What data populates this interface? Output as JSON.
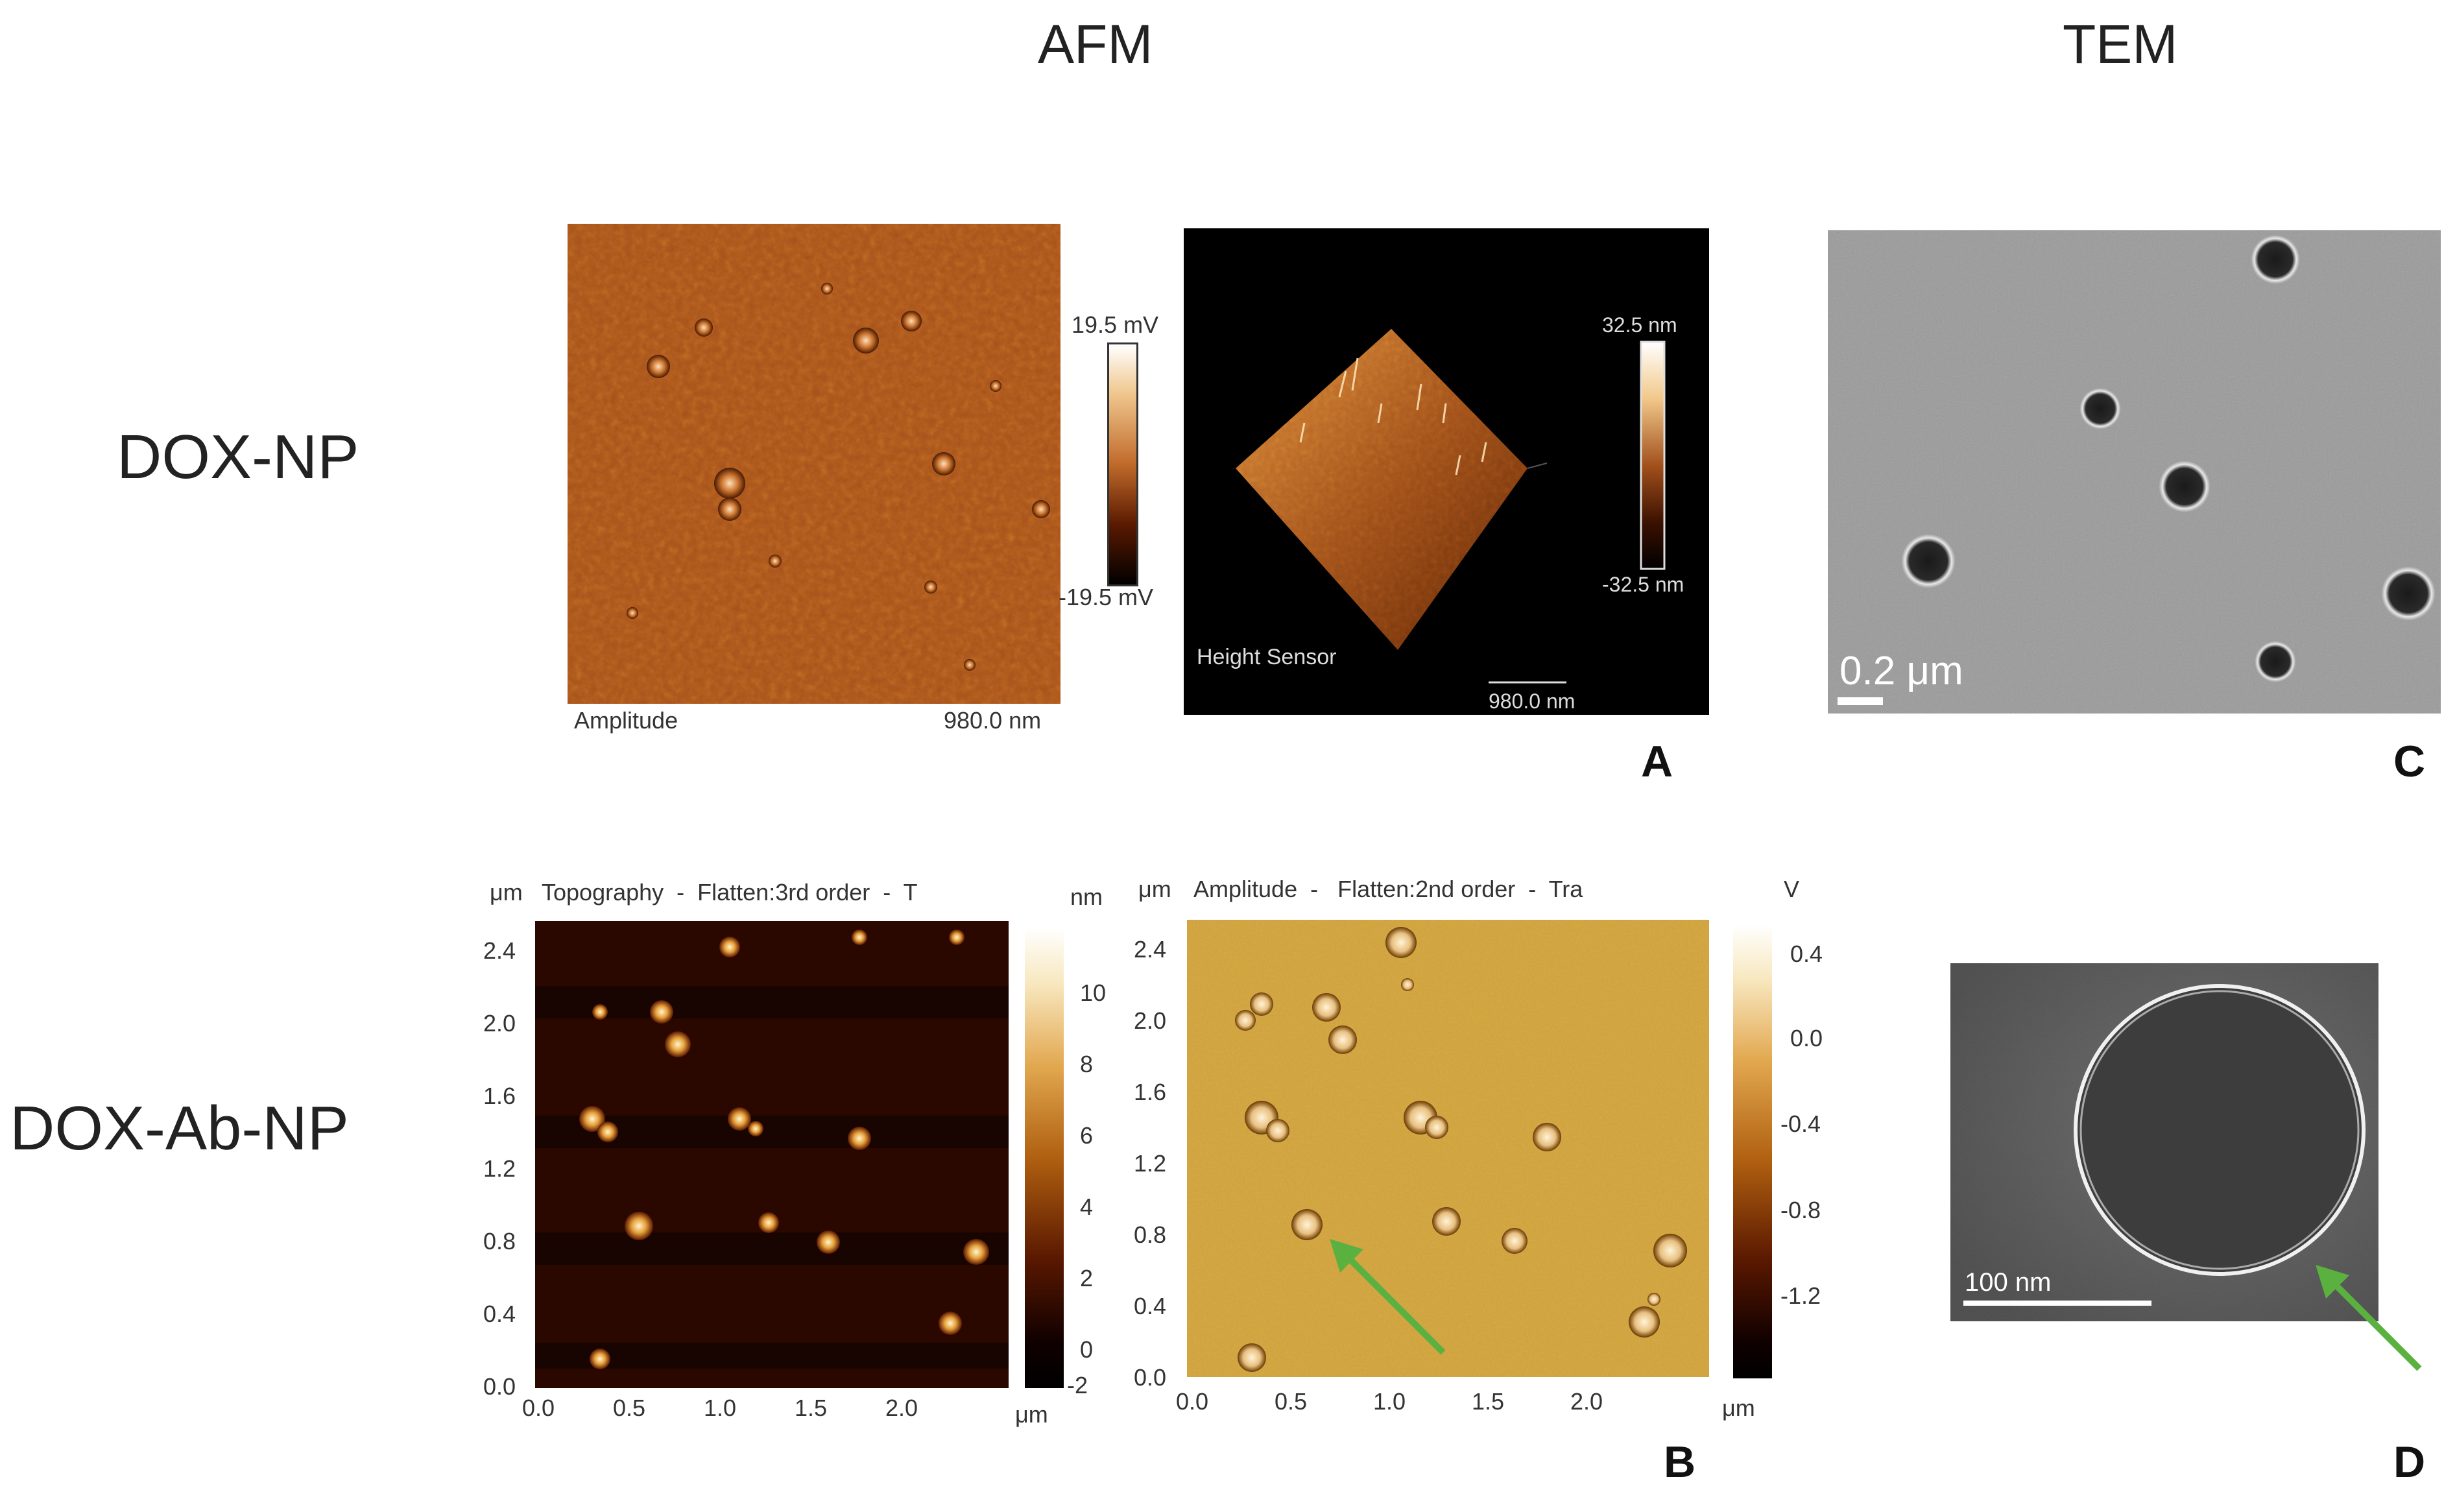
{
  "headers": {
    "afm": "AFM",
    "tem": "TEM"
  },
  "row_labels": {
    "top": "DOX-NP",
    "bottom": "DOX-Ab-NP"
  },
  "panel_letters": {
    "a": "A",
    "b": "B",
    "c": "C",
    "d": "D"
  },
  "panel_a": {
    "amplitude": {
      "label": "Amplitude",
      "scale_text": "980.0 nm",
      "colorbar_max": "19.5 mV",
      "colorbar_min": "-19.5 mV"
    },
    "height": {
      "label": "Height Sensor",
      "scale_text": "980.0 nm",
      "colorbar_max": "32.5 nm",
      "colorbar_min": "-32.5 nm"
    }
  },
  "panel_b": {
    "topography": {
      "title": "Topography  -  Flatten:3rd order  -  T",
      "y_unit": "μm",
      "x_unit": "μm",
      "colorbar_unit": "nm",
      "y_ticks": [
        "2.4",
        "2.0",
        "1.6",
        "1.2",
        "0.8",
        "0.4",
        "0.0"
      ],
      "x_ticks": [
        "0.0",
        "0.5",
        "1.0",
        "1.5",
        "2.0"
      ],
      "colorbar_ticks": [
        "10",
        "8",
        "6",
        "4",
        "2",
        "0",
        "-2"
      ]
    },
    "amplitude": {
      "title": "Amplitude  -   Flatten:2nd order  -  Tra",
      "y_unit": "μm",
      "x_unit": "μm",
      "colorbar_unit": "V",
      "y_ticks": [
        "2.4",
        "2.0",
        "1.6",
        "1.2",
        "0.8",
        "0.4",
        "0.0"
      ],
      "x_ticks": [
        "0.0",
        "0.5",
        "1.0",
        "1.5",
        "2.0"
      ],
      "colorbar_ticks": [
        "0.4",
        "0.0",
        "-0.4",
        "-0.8",
        "-1.2"
      ]
    }
  },
  "panel_c": {
    "scale_text": "0.2 μm"
  },
  "panel_d": {
    "scale_text": "100 nm"
  },
  "colors": {
    "afm_amp_bg": "#a6521b",
    "topo_bg": "#2a0800",
    "amp2_bg": "#d3a43a",
    "tem_bg": "#9a9a9a",
    "arrow": "#5bb140"
  }
}
